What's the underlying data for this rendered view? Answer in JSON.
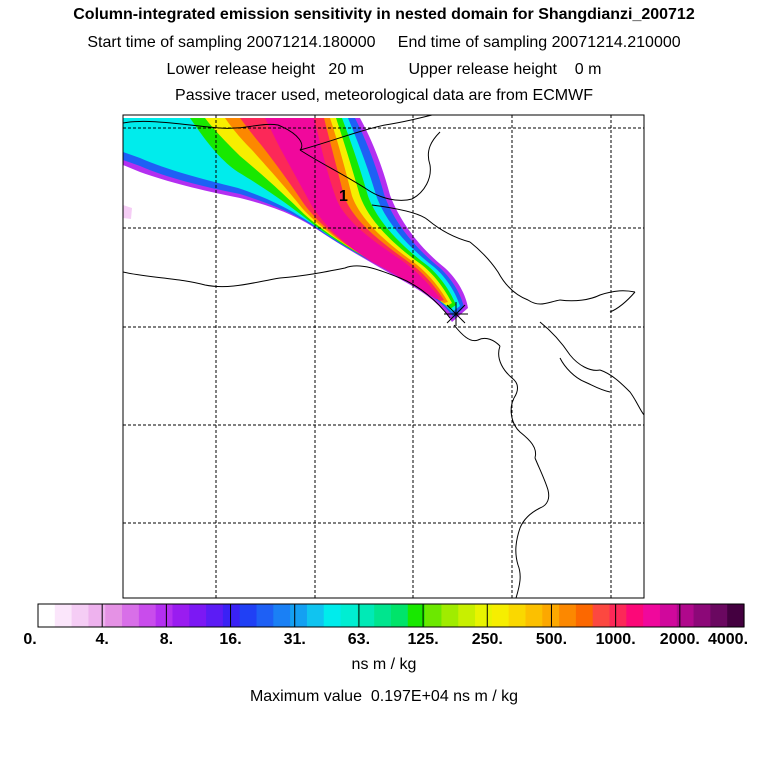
{
  "header": {
    "title": "Column-integrated emission sensitivity in nested domain for Shangdianzi_200712",
    "line2": "Start time of sampling 20071214.180000     End time of sampling 20071214.210000",
    "line3": "Lower release height   20 m          Upper release height    0 m",
    "line4": "Passive tracer used, meteorological data are from ECMWF"
  },
  "map": {
    "annotation": "1",
    "release_marker": "asterisk"
  },
  "colorbar": {
    "labels": [
      "0.",
      "4.",
      "8.",
      "16.",
      "31.",
      "63.",
      "125.",
      "250.",
      "500.",
      "1000.",
      "2000.",
      "4000."
    ],
    "units": "ns m / kg",
    "colors": [
      "#ffffff",
      "#fbe6fb",
      "#f5cdf5",
      "#eeb2ee",
      "#e592e5",
      "#d86fe8",
      "#c94cec",
      "#b42ff0",
      "#9a1cf0",
      "#7c18f4",
      "#5c1cf5",
      "#3a22f5",
      "#2040f5",
      "#1e60f5",
      "#1a80f5",
      "#14a0f2",
      "#10c4f0",
      "#00ecec",
      "#00eed2",
      "#00eab6",
      "#00e58e",
      "#00e46a",
      "#18e800",
      "#6ce800",
      "#a0ec00",
      "#c8f000",
      "#e8f400",
      "#f6ee00",
      "#fad800",
      "#fcc000",
      "#fca800",
      "#fc8800",
      "#fc6800",
      "#fc4840",
      "#fc2858",
      "#fc0878",
      "#f0089c",
      "#d0089c",
      "#b0088c",
      "#8c0878",
      "#6a0860",
      "#440040"
    ]
  },
  "max_value": "Maximum value  0.197E+04 ns m / kg"
}
